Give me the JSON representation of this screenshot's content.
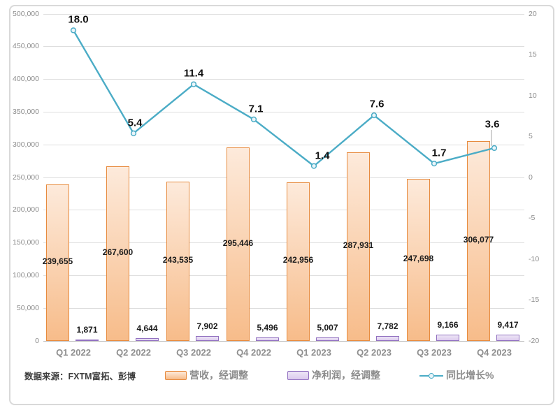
{
  "source_note": "数据来源：FXTM富拓、彭博",
  "legend": {
    "revenue_label": "营收，经调整",
    "profit_label": "净利润，经调整",
    "growth_label": "同比增长%"
  },
  "colors": {
    "revenue_border": "#e78b3e",
    "revenue_fill_top": "#fdeadb",
    "revenue_fill_bottom": "#f7bc8a",
    "profit_border": "#9170c0",
    "profit_fill_top": "#ede6f6",
    "profit_fill_bottom": "#dccaee",
    "line": "#4bacc6",
    "marker_fill": "#eaf5fa",
    "grid": "#dedede",
    "axis_line": "#bfbfbf",
    "leader_line": "#a6a6a6"
  },
  "chart_data": {
    "type": "combo",
    "categories": [
      "Q1 2022",
      "Q2 2022",
      "Q3 2022",
      "Q4 2022",
      "Q1 2023",
      "Q2 2023",
      "Q3 2023",
      "Q4 2023"
    ],
    "series": [
      {
        "name": "营收，经调整",
        "type": "bar",
        "axis": "left",
        "values": [
          239655,
          267600,
          243535,
          295446,
          242956,
          287931,
          247698,
          306077
        ],
        "labels": [
          "239,655",
          "267,600",
          "243,535",
          "295,446",
          "242,956",
          "287,931",
          "247,698",
          "306,077"
        ]
      },
      {
        "name": "净利润，经调整",
        "type": "bar",
        "axis": "left",
        "values": [
          1871,
          4644,
          7902,
          5496,
          5007,
          7782,
          9166,
          9417
        ],
        "labels": [
          "1,871",
          "4,644",
          "7,902",
          "5,496",
          "5,007",
          "7,782",
          "9,166",
          "9,417"
        ]
      },
      {
        "name": "同比增长%",
        "type": "line",
        "axis": "right",
        "values": [
          18.0,
          5.4,
          11.4,
          7.1,
          1.4,
          7.6,
          1.7,
          3.6
        ],
        "labels": [
          "18.0",
          "5.4",
          "11.4",
          "7.1",
          "1.4",
          "7.6",
          "1.7",
          "3.6"
        ]
      }
    ],
    "left_axis": {
      "min": 0,
      "max": 500000,
      "step": 50000,
      "tick_labels": [
        "500,000",
        "450,000",
        "400,000",
        "350,000",
        "300,000",
        "250,000",
        "200,000",
        "150,000",
        "100,000",
        "50,000",
        "0"
      ]
    },
    "right_axis": {
      "min": -20,
      "max": 20,
      "step": 5,
      "tick_labels": [
        "20",
        "15",
        "10",
        "5",
        "0",
        "-5",
        "-10",
        "-15",
        "-20"
      ]
    },
    "grid": true,
    "legend_position": "bottom"
  }
}
